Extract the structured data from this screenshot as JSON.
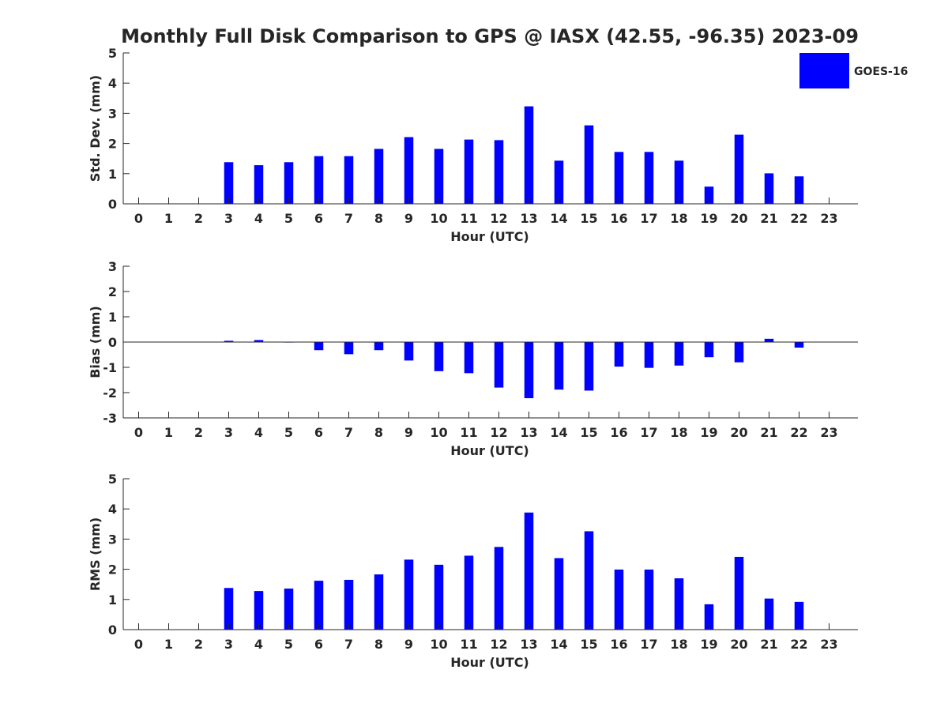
{
  "title": "Monthly Full Disk Comparison to GPS @ IASX (42.55, -96.35) 2023-09",
  "legend": {
    "label": "GOES-16",
    "color": "#0000ff",
    "placement": "top-right"
  },
  "chart_data": [
    {
      "type": "bar",
      "xlabel": "Hour (UTC)",
      "ylabel": "Std. Dev. (mm)",
      "ylim": [
        0,
        5
      ],
      "yticks": [
        0,
        1,
        2,
        3,
        4,
        5
      ],
      "categories": [
        0,
        1,
        2,
        3,
        4,
        5,
        6,
        7,
        8,
        9,
        10,
        11,
        12,
        13,
        14,
        15,
        16,
        17,
        18,
        19,
        20,
        21,
        22,
        23
      ],
      "series": [
        {
          "name": "GOES-16",
          "color": "#0000ff",
          "values": [
            null,
            null,
            null,
            1.38,
            1.28,
            1.38,
            1.58,
            1.58,
            1.82,
            2.21,
            1.82,
            2.13,
            2.11,
            3.23,
            1.43,
            2.6,
            1.72,
            1.72,
            1.43,
            0.57,
            2.29,
            1.01,
            0.91,
            null
          ]
        }
      ],
      "grid": false
    },
    {
      "type": "bar",
      "xlabel": "Hour (UTC)",
      "ylabel": "Bias (mm)",
      "ylim": [
        -3,
        3
      ],
      "yticks": [
        -3,
        -2,
        -1,
        0,
        1,
        2,
        3
      ],
      "categories": [
        0,
        1,
        2,
        3,
        4,
        5,
        6,
        7,
        8,
        9,
        10,
        11,
        12,
        13,
        14,
        15,
        16,
        17,
        18,
        19,
        20,
        21,
        22,
        23
      ],
      "series": [
        {
          "name": "GOES-16",
          "color": "#0000ff",
          "values": [
            null,
            null,
            null,
            0.05,
            0.08,
            0.0,
            -0.32,
            -0.48,
            -0.32,
            -0.73,
            -1.15,
            -1.23,
            -1.8,
            -2.22,
            -1.88,
            -1.92,
            -0.97,
            -1.02,
            -0.93,
            -0.6,
            -0.8,
            0.13,
            -0.22,
            null
          ]
        }
      ],
      "zero_line": true,
      "grid": false
    },
    {
      "type": "bar",
      "xlabel": "Hour (UTC)",
      "ylabel": "RMS (mm)",
      "ylim": [
        0,
        5
      ],
      "yticks": [
        0,
        1,
        2,
        3,
        4,
        5
      ],
      "categories": [
        0,
        1,
        2,
        3,
        4,
        5,
        6,
        7,
        8,
        9,
        10,
        11,
        12,
        13,
        14,
        15,
        16,
        17,
        18,
        19,
        20,
        21,
        22,
        23
      ],
      "series": [
        {
          "name": "GOES-16",
          "color": "#0000ff",
          "values": [
            null,
            null,
            null,
            1.38,
            1.28,
            1.36,
            1.62,
            1.65,
            1.83,
            2.32,
            2.15,
            2.45,
            2.74,
            3.88,
            2.37,
            3.26,
            1.99,
            1.99,
            1.7,
            0.84,
            2.41,
            1.03,
            0.92,
            null
          ]
        }
      ],
      "grid": false
    }
  ]
}
